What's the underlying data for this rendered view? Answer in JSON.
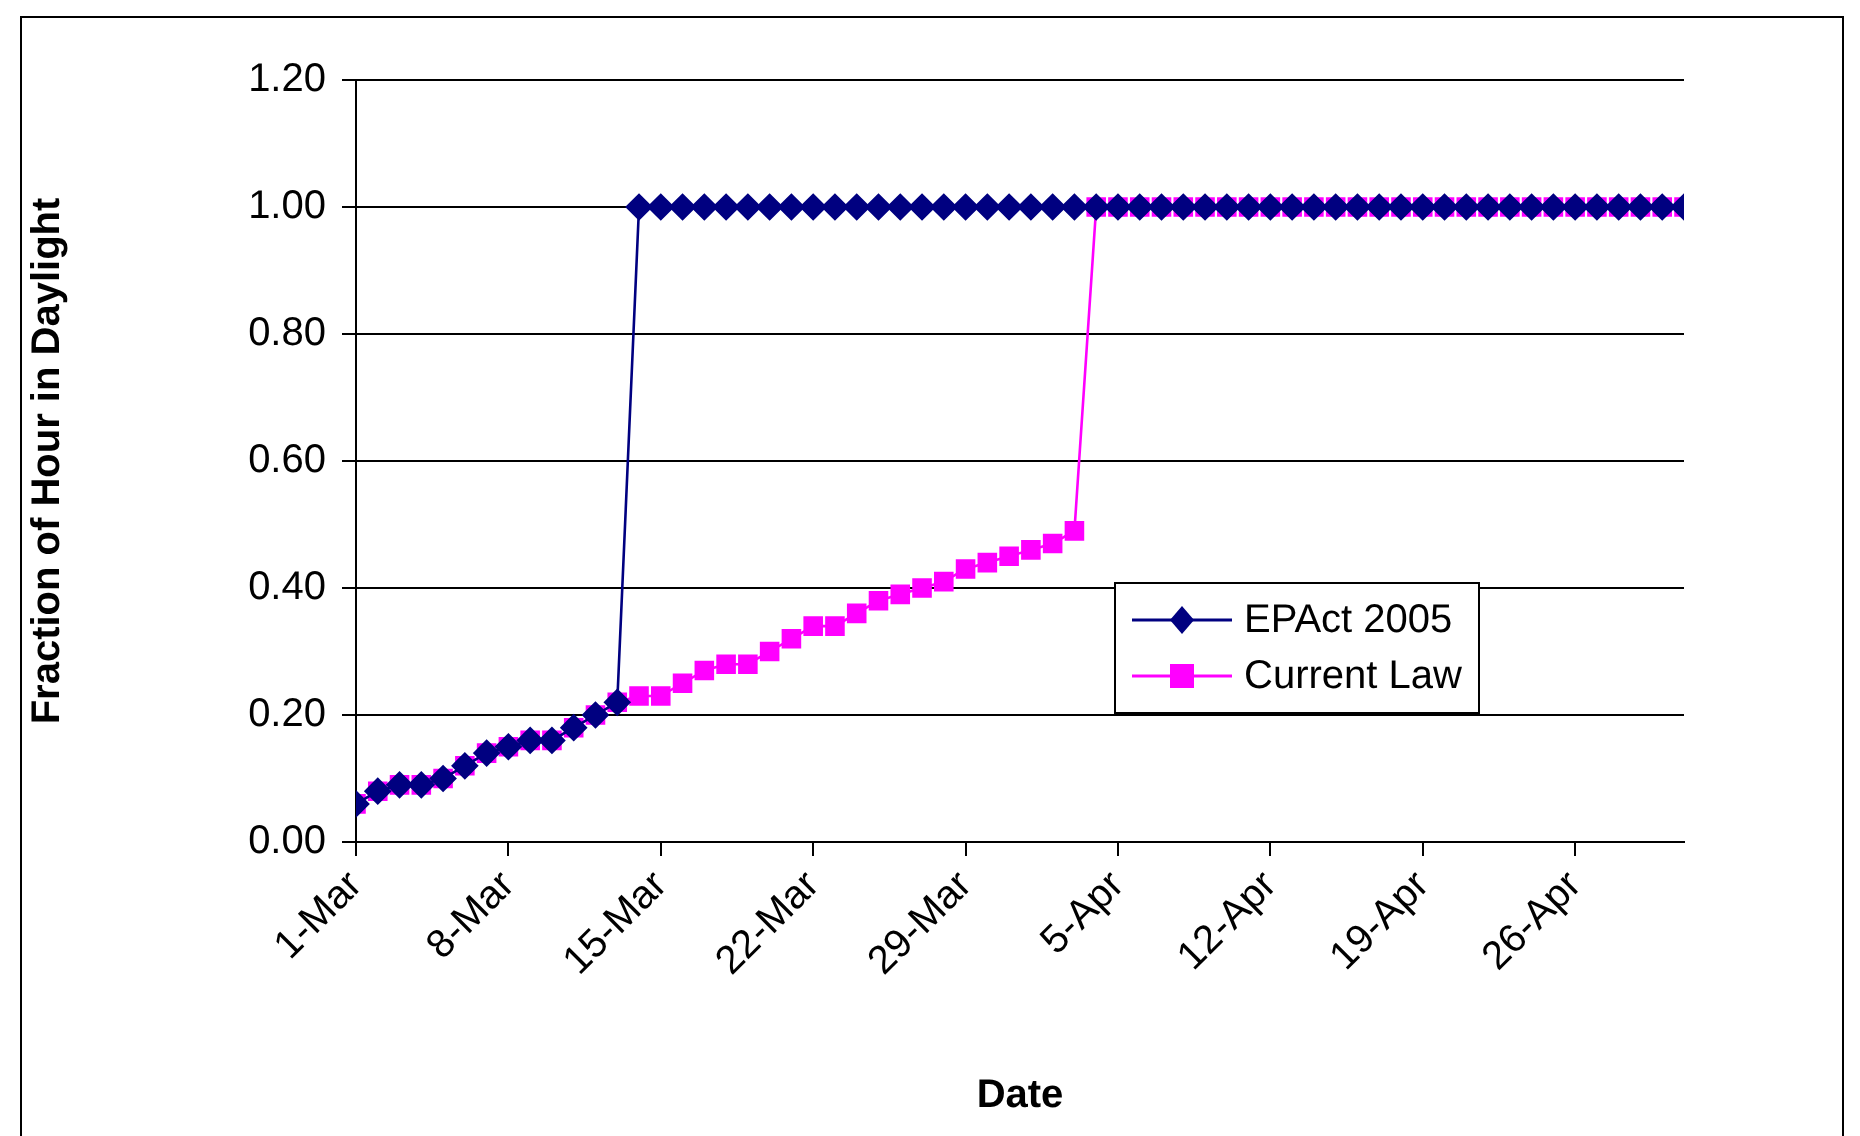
{
  "chart_data": {
    "type": "line",
    "xlabel": "Date",
    "ylabel": "Fraction of Hour in Daylight",
    "x": [
      "--03-01",
      "--03-02",
      "--03-03",
      "--03-04",
      "--03-05",
      "--03-06",
      "--03-07",
      "--03-08",
      "--03-09",
      "--03-10",
      "--03-11",
      "--03-12",
      "--03-13",
      "--03-14",
      "--03-15",
      "--03-16",
      "--03-17",
      "--03-18",
      "--03-19",
      "--03-20",
      "--03-21",
      "--03-22",
      "--03-23",
      "--03-24",
      "--03-25",
      "--03-26",
      "--03-27",
      "--03-28",
      "--03-29",
      "--03-30",
      "--03-31",
      "--04-01",
      "--04-02",
      "--04-03",
      "--04-04",
      "--04-05",
      "--04-06",
      "--04-07",
      "--04-08",
      "--04-09",
      "--04-10",
      "--04-11",
      "--04-12",
      "--04-13",
      "--04-14",
      "--04-15",
      "--04-16",
      "--04-17",
      "--04-18",
      "--04-19",
      "--04-20",
      "--04-21",
      "--04-22",
      "--04-23",
      "--04-24",
      "--04-25",
      "--04-26",
      "--04-27",
      "--04-28",
      "--04-29",
      "--04-30",
      "--05-01"
    ],
    "series": [
      {
        "name": "EPAct 2005",
        "color": "#000080",
        "marker": "diamond",
        "values": [
          0.06,
          0.08,
          0.09,
          0.09,
          0.1,
          0.12,
          0.14,
          0.15,
          0.16,
          0.16,
          0.18,
          0.2,
          0.22,
          1.0,
          1.0,
          1.0,
          1.0,
          1.0,
          1.0,
          1.0,
          1.0,
          1.0,
          1.0,
          1.0,
          1.0,
          1.0,
          1.0,
          1.0,
          1.0,
          1.0,
          1.0,
          1.0,
          1.0,
          1.0,
          1.0,
          1.0,
          1.0,
          1.0,
          1.0,
          1.0,
          1.0,
          1.0,
          1.0,
          1.0,
          1.0,
          1.0,
          1.0,
          1.0,
          1.0,
          1.0,
          1.0,
          1.0,
          1.0,
          1.0,
          1.0,
          1.0,
          1.0,
          1.0,
          1.0,
          1.0,
          1.0,
          1.0
        ]
      },
      {
        "name": "Current Law",
        "color": "#ff00ff",
        "marker": "square",
        "values": [
          0.06,
          0.08,
          0.09,
          0.09,
          0.1,
          0.12,
          0.14,
          0.15,
          0.16,
          0.16,
          0.18,
          0.2,
          0.22,
          0.23,
          0.23,
          0.25,
          0.27,
          0.28,
          0.28,
          0.3,
          0.32,
          0.34,
          0.34,
          0.36,
          0.38,
          0.39,
          0.4,
          0.41,
          0.43,
          0.44,
          0.45,
          0.46,
          0.47,
          0.49,
          1.0,
          1.0,
          1.0,
          1.0,
          1.0,
          1.0,
          1.0,
          1.0,
          1.0,
          1.0,
          1.0,
          1.0,
          1.0,
          1.0,
          1.0,
          1.0,
          1.0,
          1.0,
          1.0,
          1.0,
          1.0,
          1.0,
          1.0,
          1.0,
          1.0,
          1.0,
          1.0,
          1.0
        ]
      }
    ],
    "xlim": [
      "--03-01",
      "--05-01"
    ],
    "xticks": [
      {
        "value": "--03-01",
        "label": "1-Mar"
      },
      {
        "value": "--03-08",
        "label": "8-Mar"
      },
      {
        "value": "--03-15",
        "label": "15-Mar"
      },
      {
        "value": "--03-22",
        "label": "22-Mar"
      },
      {
        "value": "--03-29",
        "label": "29-Mar"
      },
      {
        "value": "--04-05",
        "label": "5-Apr"
      },
      {
        "value": "--04-12",
        "label": "12-Apr"
      },
      {
        "value": "--04-19",
        "label": "19-Apr"
      },
      {
        "value": "--04-26",
        "label": "26-Apr"
      }
    ],
    "ylim": [
      0,
      1.2
    ],
    "yticks": [
      {
        "value": 0,
        "label": "0.00"
      },
      {
        "value": 0.2,
        "label": "0.20"
      },
      {
        "value": 0.4,
        "label": "0.40"
      },
      {
        "value": 0.6,
        "label": "0.60"
      },
      {
        "value": 0.8,
        "label": "0.80"
      },
      {
        "value": 1,
        "label": "1.00"
      },
      {
        "value": 1.2,
        "label": "1.20"
      }
    ],
    "grid": "y",
    "legend": "right",
    "line_style": "solid"
  }
}
